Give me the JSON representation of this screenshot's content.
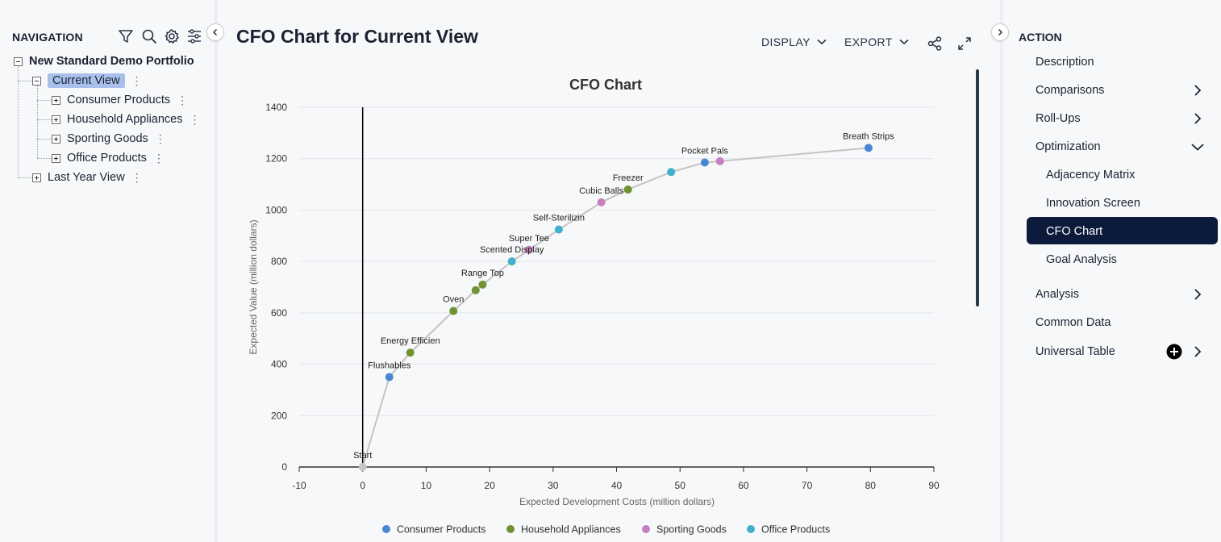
{
  "navigation": {
    "title": "NAVIGATION",
    "tree": {
      "root": "New Standard Demo Portfolio",
      "current_view": "Current View",
      "children": [
        "Consumer Products",
        "Household Appliances",
        "Sporting Goods",
        "Office Products"
      ],
      "other": "Last Year View"
    }
  },
  "main": {
    "title": "CFO Chart for Current View",
    "display_label": "DISPLAY",
    "export_label": "EXPORT"
  },
  "action": {
    "title": "ACTION",
    "items": {
      "description": "Description",
      "comparisons": "Comparisons",
      "rollups": "Roll-Ups",
      "optimization": "Optimization",
      "adjacency": "Adjacency Matrix",
      "innovation": "Innovation Screen",
      "cfo": "CFO Chart",
      "goal": "Goal Analysis",
      "analysis": "Analysis",
      "common": "Common Data",
      "universal": "Universal Table"
    }
  },
  "colors": {
    "consumer": "#4a86d4",
    "household": "#6e9330",
    "sporting": "#c77fbf",
    "office": "#3fb1c9",
    "start": "#c4c4c4",
    "line": "#c4c4c4",
    "active_bg": "#0c1a3c"
  },
  "chart_data": {
    "type": "scatter",
    "title": "CFO Chart",
    "xlabel": "Expected Development Costs (million dollars)",
    "ylabel": "Expected Value (million dollars)",
    "xlim": [
      -10,
      90
    ],
    "ylim": [
      0,
      1400
    ],
    "xticks": [
      -10,
      0,
      10,
      20,
      30,
      40,
      50,
      60,
      70,
      80,
      90
    ],
    "yticks": [
      0,
      200,
      400,
      600,
      800,
      1000,
      1200,
      1400
    ],
    "grid": true,
    "legend_position": "bottom",
    "legend": [
      {
        "name": "Consumer Products",
        "key": "consumer"
      },
      {
        "name": "Household Appliances",
        "key": "household"
      },
      {
        "name": "Sporting Goods",
        "key": "sporting"
      },
      {
        "name": "Office Products",
        "key": "office"
      }
    ],
    "points": [
      {
        "x": 0,
        "y": 0,
        "label": "Start",
        "cat": "start"
      },
      {
        "x": 4.2,
        "y": 350,
        "label": "Flushables",
        "cat": "consumer"
      },
      {
        "x": 7.5,
        "y": 445,
        "label": "Energy Efficien",
        "cat": "household"
      },
      {
        "x": 14.3,
        "y": 607,
        "label": "Oven",
        "cat": "household"
      },
      {
        "x": 17.8,
        "y": 688,
        "label": "",
        "cat": "household"
      },
      {
        "x": 18.9,
        "y": 710,
        "label": "Range Top",
        "cat": "household"
      },
      {
        "x": 23.5,
        "y": 800,
        "label": "Scented Display",
        "cat": "office"
      },
      {
        "x": 26.2,
        "y": 845,
        "label": "Super Tee",
        "cat": "sporting"
      },
      {
        "x": 30.9,
        "y": 924,
        "label": "Self-Sterilizin",
        "cat": "office"
      },
      {
        "x": 37.6,
        "y": 1030,
        "label": "Cubic Balls",
        "cat": "sporting"
      },
      {
        "x": 41.8,
        "y": 1080,
        "label": "Freezer",
        "cat": "household"
      },
      {
        "x": 48.6,
        "y": 1148,
        "label": "",
        "cat": "office"
      },
      {
        "x": 53.9,
        "y": 1185,
        "label": "Pocket Pals",
        "cat": "consumer"
      },
      {
        "x": 56.3,
        "y": 1190,
        "label": "",
        "cat": "sporting"
      },
      {
        "x": 79.7,
        "y": 1242,
        "label": "Breath Strips",
        "cat": "consumer"
      }
    ]
  }
}
